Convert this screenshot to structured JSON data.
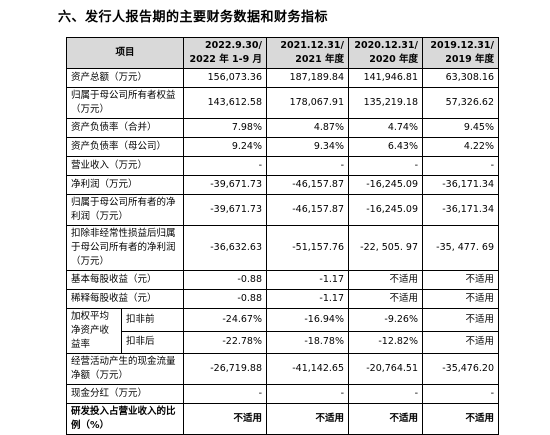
{
  "header": {
    "title": "六、发行人报告期的主要财务数据和财务指标"
  },
  "table": {
    "item_header": "项目",
    "columns": [
      [
        "2022.9.30/",
        "2022 年 1-9 月"
      ],
      [
        "2021.12.31/",
        "2021 年度"
      ],
      [
        "2020.12.31/",
        "2020 年度"
      ],
      [
        "2019.12.31/",
        "2019 年度"
      ]
    ],
    "rows": [
      {
        "label": "资产总额（万元）",
        "values": [
          "156,073.36",
          "187,189.84",
          "141,946.81",
          "63,308.16"
        ]
      },
      {
        "label": "归属于母公司所有者权益（万元）",
        "values": [
          "143,612.58",
          "178,067.91",
          "135,219.18",
          "57,326.62"
        ]
      },
      {
        "label": "资产负债率（合并）",
        "values": [
          "7.98%",
          "4.87%",
          "4.74%",
          "9.45%"
        ]
      },
      {
        "label": "资产负债率（母公司）",
        "values": [
          "9.24%",
          "9.34%",
          "6.43%",
          "4.22%"
        ]
      },
      {
        "label": "营业收入（万元）",
        "values": [
          "-",
          "-",
          "-",
          "-"
        ]
      },
      {
        "label": "净利润（万元）",
        "values": [
          "-39,671.73",
          "-46,157.87",
          "-16,245.09",
          "-36,171.34"
        ]
      },
      {
        "label": "归属于母公司所有者的净利润（万元）",
        "values": [
          "-39,671.73",
          "-46,157.87",
          "-16,245.09",
          "-36,171.34"
        ]
      },
      {
        "label": "扣除非经常性损益后归属于母公司所有者的净利润（万元）",
        "values": [
          "-36,632.63",
          "-51,157.76",
          "-22, 505. 97",
          "-35, 477. 69"
        ]
      },
      {
        "label": "基本每股收益（元）",
        "values": [
          "-0.88",
          "-1.17",
          "不适用",
          "不适用"
        ]
      },
      {
        "label": "稀释每股收益（元）",
        "values": [
          "-0.88",
          "-1.17",
          "不适用",
          "不适用"
        ]
      }
    ],
    "group": {
      "label": "加权平均净资产收益率",
      "sub": [
        {
          "label": "扣非前",
          "values": [
            "-24.67%",
            "-16.94%",
            "-9.26%",
            "不适用"
          ]
        },
        {
          "label": "扣非后",
          "values": [
            "-22.78%",
            "-18.78%",
            "-12.82%",
            "不适用"
          ]
        }
      ]
    },
    "rows_after": [
      {
        "label": "经营活动产生的现金流量净额（万元）",
        "values": [
          "-26,719.88",
          "-41,142.65",
          "-20,764.51",
          "-35,476.20"
        ]
      },
      {
        "label": "现金分红（万元）",
        "values": [
          "-",
          "-",
          "-",
          "-"
        ]
      },
      {
        "label": "研发投入占营业收入的比例（%）",
        "values": [
          "不适用",
          "不适用",
          "不适用",
          "不适用"
        ],
        "bold": true
      }
    ]
  }
}
